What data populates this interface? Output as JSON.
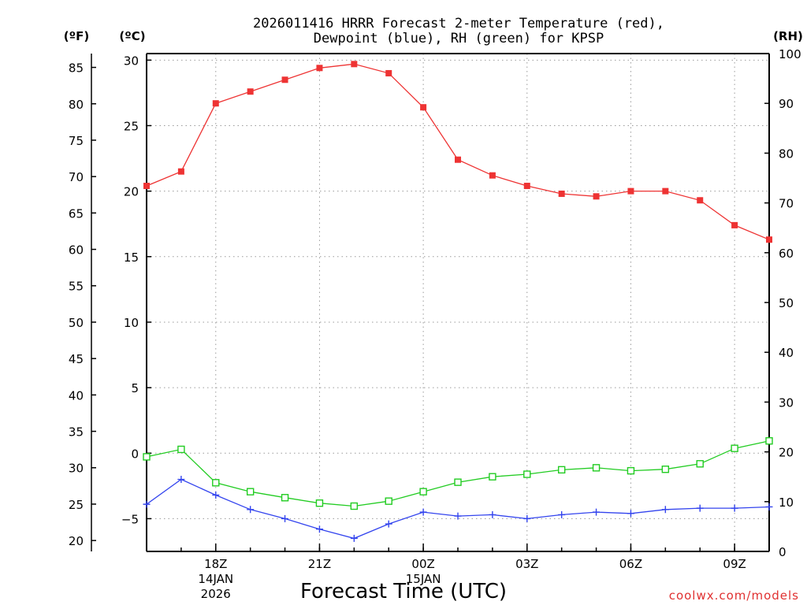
{
  "chart_data": {
    "type": "line",
    "title_lines": [
      "2026011416 HRRR Forecast 2-meter Temperature (red),",
      "Dewpoint (blue), RH (green) for KPSP"
    ],
    "xlabel": "Forecast Time (UTC)",
    "credit": "coolwx.com/models",
    "units": {
      "left_outer": "(ºF)",
      "left_inner": "(ºC)",
      "right": "(RH)"
    },
    "x": [
      16,
      17,
      18,
      19,
      20,
      21,
      22,
      23,
      24,
      25,
      26,
      27,
      28,
      29,
      30,
      31,
      32,
      33,
      34
    ],
    "xlim": [
      16,
      34
    ],
    "x_ticks": [
      {
        "x": 18,
        "lines": [
          "18Z",
          "14JAN",
          "2026"
        ]
      },
      {
        "x": 21,
        "lines": [
          "21Z"
        ]
      },
      {
        "x": 24,
        "lines": [
          "00Z",
          "15JAN"
        ]
      },
      {
        "x": 27,
        "lines": [
          "03Z"
        ]
      },
      {
        "x": 30,
        "lines": [
          "06Z"
        ]
      },
      {
        "x": 33,
        "lines": [
          "09Z"
        ]
      }
    ],
    "celsius_axis": {
      "range": [
        -7.5,
        30.5
      ],
      "ticks": [
        "30",
        "25",
        "20",
        "15",
        "10",
        "5",
        "0",
        "−5"
      ]
    },
    "fahrenheit_axis": {
      "ticks": [
        "85",
        "80",
        "75",
        "70",
        "65",
        "60",
        "55",
        "50",
        "45",
        "40",
        "35",
        "30",
        "25",
        "20"
      ]
    },
    "rh_axis": {
      "range": [
        0,
        100
      ],
      "ticks": [
        "100",
        "90",
        "80",
        "70",
        "60",
        "50",
        "40",
        "30",
        "20",
        "10",
        "0"
      ]
    },
    "series": [
      {
        "name": "Temperature",
        "axis": "celsius",
        "color": "#ee3333",
        "marker": "filled-square",
        "values": [
          20.4,
          21.5,
          26.7,
          27.6,
          28.5,
          29.4,
          29.7,
          29.0,
          26.4,
          22.4,
          21.2,
          20.4,
          19.8,
          19.6,
          20.0,
          20.0,
          19.3,
          17.4,
          16.3
        ]
      },
      {
        "name": "Dewpoint",
        "axis": "celsius",
        "color": "#3344ee",
        "marker": "plus",
        "values": [
          -3.9,
          -2.0,
          -3.2,
          -4.3,
          -5.0,
          -5.8,
          -6.5,
          -5.4,
          -4.5,
          -4.8,
          -4.7,
          -5.0,
          -4.7,
          -4.5,
          -4.6,
          -4.3,
          -4.2,
          -4.2,
          -4.1
        ]
      },
      {
        "name": "RH",
        "axis": "rh",
        "color": "#22cc22",
        "marker": "open-square",
        "values": [
          19,
          20.5,
          13.8,
          12,
          10.8,
          9.7,
          9.1,
          10.1,
          12,
          13.9,
          15,
          15.5,
          16.4,
          16.8,
          16.2,
          16.5,
          17.6,
          20.7,
          22.2
        ]
      }
    ]
  }
}
